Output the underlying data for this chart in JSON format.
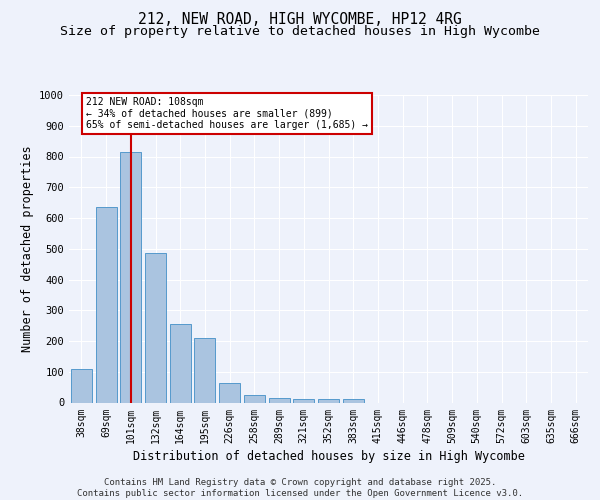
{
  "title": "212, NEW ROAD, HIGH WYCOMBE, HP12 4RG",
  "subtitle": "Size of property relative to detached houses in High Wycombe",
  "xlabel": "Distribution of detached houses by size in High Wycombe",
  "ylabel": "Number of detached properties",
  "footer": "Contains HM Land Registry data © Crown copyright and database right 2025.\nContains public sector information licensed under the Open Government Licence v3.0.",
  "categories": [
    "38sqm",
    "69sqm",
    "101sqm",
    "132sqm",
    "164sqm",
    "195sqm",
    "226sqm",
    "258sqm",
    "289sqm",
    "321sqm",
    "352sqm",
    "383sqm",
    "415sqm",
    "446sqm",
    "478sqm",
    "509sqm",
    "540sqm",
    "572sqm",
    "603sqm",
    "635sqm",
    "666sqm"
  ],
  "values": [
    110,
    635,
    815,
    485,
    255,
    210,
    65,
    25,
    15,
    10,
    10,
    10,
    0,
    0,
    0,
    0,
    0,
    0,
    0,
    0,
    0
  ],
  "bar_color": "#aac4e0",
  "bar_edge_color": "#5599cc",
  "vline_x_index": 2,
  "vline_color": "#cc0000",
  "annotation_text": "212 NEW ROAD: 108sqm\n← 34% of detached houses are smaller (899)\n65% of semi-detached houses are larger (1,685) →",
  "annotation_box_color": "#cc0000",
  "ylim": [
    0,
    1000
  ],
  "yticks": [
    0,
    100,
    200,
    300,
    400,
    500,
    600,
    700,
    800,
    900,
    1000
  ],
  "bg_color": "#eef2fb",
  "plot_bg_color": "#eef2fb",
  "grid_color": "#ffffff",
  "title_fontsize": 10.5,
  "subtitle_fontsize": 9.5,
  "axis_label_fontsize": 8.5,
  "tick_fontsize": 7,
  "footer_fontsize": 6.5
}
